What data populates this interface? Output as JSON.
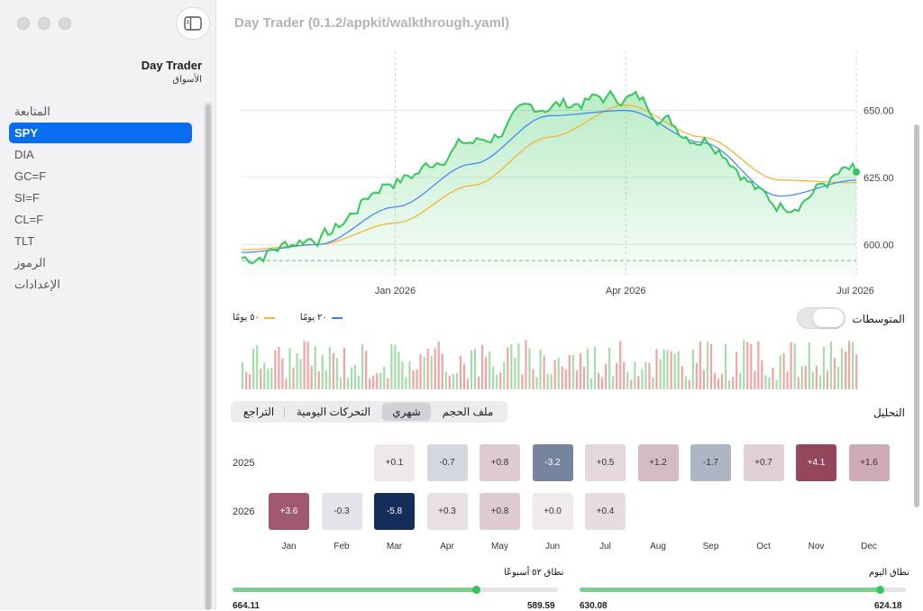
{
  "window": {
    "title": "Day Trader (0.1.2/appkit/walkthrough.yaml)"
  },
  "sidebar": {
    "title": "Day Trader",
    "subtitle": "الأسواق",
    "items": [
      {
        "label": "المتابعة",
        "active": false
      },
      {
        "label": "SPY",
        "active": true
      },
      {
        "label": "DIA",
        "active": false
      },
      {
        "label": "GC=F",
        "active": false
      },
      {
        "label": "SI=F",
        "active": false
      },
      {
        "label": "CL=F",
        "active": false
      },
      {
        "label": "TLT",
        "active": false
      },
      {
        "label": "الرموز",
        "active": false
      },
      {
        "label": "الإعدادات",
        "active": false
      }
    ]
  },
  "chart_data": {
    "type": "line",
    "x": [
      "Nov 2025",
      "Dec 2025",
      "Jan 2026",
      "Feb 2026",
      "Mar 2026",
      "Apr 2026",
      "May 2026",
      "Jun 2026",
      "Jul 2026"
    ],
    "series": [
      {
        "values": [
          595,
          603,
          624,
          638,
          652,
          655,
          640,
          615,
          627
        ],
        "color": "#34c759"
      },
      {
        "name": "٢٠ يومًا",
        "values": [
          597,
          600,
          614,
          630,
          648,
          650,
          638,
          618,
          624
        ],
        "color": "#3b82f6"
      },
      {
        "name": "٥٠ يومًا",
        "values": [
          598,
          600,
          608,
          622,
          640,
          652,
          640,
          624,
          623
        ],
        "color": "#f5b12a"
      }
    ],
    "x_ticks": [
      "Jan 2026",
      "Apr 2026",
      "Jul 2026"
    ],
    "y_ticks": [
      "650.00",
      "625.00",
      "600.00"
    ],
    "ylim": [
      588,
      672
    ],
    "reference_line": 594,
    "last_value": 627
  },
  "legend": {
    "ma20": "٢٠ يومًا",
    "ma50": "٥٠ يومًا",
    "ma20_color": "#3b82f6",
    "ma50_color": "#f5b12a"
  },
  "averages": {
    "label": "المتوسطات",
    "enabled": false
  },
  "analysis": {
    "label": "التحليل",
    "segments": [
      {
        "label": "التراجع",
        "selected": false
      },
      {
        "label": "التحركات اليومية",
        "selected": false
      },
      {
        "label": "شهري",
        "selected": true
      },
      {
        "label": "ملف الحجم",
        "selected": false
      }
    ]
  },
  "monthly": {
    "months": [
      "Jan",
      "Feb",
      "Mar",
      "Apr",
      "May",
      "Jun",
      "Jul",
      "Aug",
      "Sep",
      "Oct",
      "Nov",
      "Dec"
    ],
    "rows": [
      {
        "year": "2025",
        "values": [
          null,
          null,
          "+0.1",
          "-0.7",
          "+0.8",
          "-3.2",
          "+0.5",
          "+1.2",
          "-1.7",
          "+0.7",
          "+4.1",
          "+1.6"
        ]
      },
      {
        "year": "2026",
        "values": [
          "+3.6",
          "-0.3",
          "-5.8",
          "+0.3",
          "+0.8",
          "+0.0",
          "+0.4",
          null,
          null,
          null,
          null,
          null
        ]
      }
    ]
  },
  "ranges": {
    "week52": {
      "label": "نطاق ٥٢ أسبوعًا",
      "high": "664.11",
      "low": "589.59",
      "position": 0.25
    },
    "day": {
      "label": "نطاق اليوم",
      "high": "630.08",
      "low": "624.18",
      "position": 0.08
    }
  }
}
